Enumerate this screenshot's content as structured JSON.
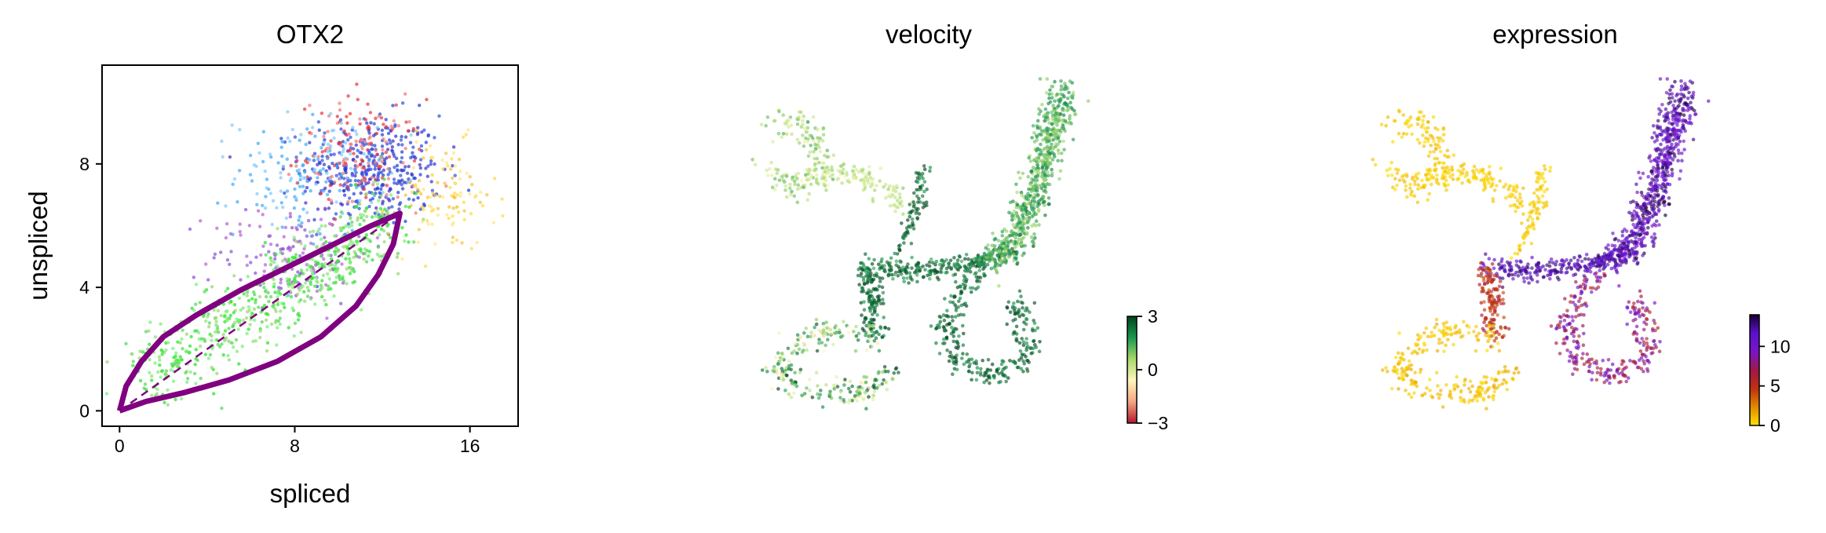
{
  "chart_data": [
    {
      "type": "scatter",
      "title": "OTX2",
      "xlabel": "spliced",
      "ylabel": "unspliced",
      "xlim": [
        -0.8,
        18.2
      ],
      "ylim": [
        -0.5,
        11.2
      ],
      "xticks": [
        0,
        8,
        16
      ],
      "yticks": [
        0,
        4,
        8
      ],
      "grid": false,
      "frame": "box",
      "cluster_palette": [
        "#1f3bd6",
        "#3a2fc4",
        "#e8323a",
        "#f07878",
        "#3fa9f5",
        "#7fc9ff",
        "#8a4fd8",
        "#b05fd8",
        "#2ee82e",
        "#7cf07c",
        "#9ed87a",
        "#ffd84a",
        "#ffe680"
      ],
      "clusters": [
        {
          "center": [
            11.5,
            7.8
          ],
          "spread": [
            1.6,
            0.9
          ],
          "count": 380,
          "colors": [
            "#1f3bd6",
            "#3a2fc4",
            "#2b4de0"
          ]
        },
        {
          "center": [
            11.0,
            8.3
          ],
          "spread": [
            1.4,
            0.9
          ],
          "count": 160,
          "colors": [
            "#e8323a",
            "#f07878"
          ]
        },
        {
          "center": [
            8.5,
            7.6
          ],
          "spread": [
            1.6,
            1.0
          ],
          "count": 160,
          "colors": [
            "#3fa9f5",
            "#7fc9ff"
          ]
        },
        {
          "center": [
            14.8,
            6.9
          ],
          "spread": [
            1.2,
            0.9
          ],
          "count": 110,
          "colors": [
            "#ffd84a",
            "#ffe680",
            "#f5c13a"
          ]
        },
        {
          "center": [
            7.8,
            5.1
          ],
          "spread": [
            1.8,
            0.8
          ],
          "count": 140,
          "colors": [
            "#8a4fd8",
            "#b05fd8"
          ]
        }
      ],
      "diagonal_band": {
        "from": [
          0.5,
          0.8
        ],
        "to": [
          12.5,
          6.2
        ],
        "width": 0.8,
        "count": 650,
        "colors": [
          "#2ee82e",
          "#7cf07c",
          "#9ed87a",
          "#5fd85f"
        ]
      },
      "model_curve": {
        "color": "#800080",
        "upper": [
          [
            0,
            0
          ],
          [
            0.3,
            0.8
          ],
          [
            1,
            1.6
          ],
          [
            2,
            2.4
          ],
          [
            3.5,
            3.1
          ],
          [
            5.5,
            3.9
          ],
          [
            7.5,
            4.6
          ],
          [
            9.5,
            5.3
          ],
          [
            11.5,
            6.0
          ],
          [
            12.8,
            6.4
          ]
        ],
        "lower": [
          [
            12.8,
            6.4
          ],
          [
            12.5,
            5.4
          ],
          [
            11.8,
            4.4
          ],
          [
            10.8,
            3.4
          ],
          [
            9.2,
            2.4
          ],
          [
            7.2,
            1.6
          ],
          [
            5.0,
            1.0
          ],
          [
            3.0,
            0.6
          ],
          [
            1.2,
            0.3
          ],
          [
            0,
            0
          ]
        ],
        "steady_state_line": {
          "from": [
            0,
            0
          ],
          "to": [
            12.8,
            6.4
          ],
          "dash": true
        }
      }
    },
    {
      "type": "scatter",
      "title": "velocity",
      "embedding": "umap",
      "colormap": "red-yellow-green",
      "colorbar": {
        "ticks": [
          3,
          0,
          -3
        ],
        "tick_labels": [
          "3",
          "0",
          "−3"
        ],
        "min": -3,
        "max": 3
      },
      "colorbar_stops": [
        "#b2182b",
        "#f4a582",
        "#fff7bc",
        "#a6d96a",
        "#1a9850",
        "#00441b"
      ]
    },
    {
      "type": "scatter",
      "title": "expression",
      "embedding": "umap",
      "colormap": "yellow-red-purple-black",
      "colorbar": {
        "ticks": [
          10,
          5,
          0
        ],
        "tick_labels": [
          "10",
          "5",
          "0"
        ],
        "min": 0,
        "max": 14
      },
      "colorbar_stops": [
        "#ffe000",
        "#e08a00",
        "#c03010",
        "#a01848",
        "#7a14c8",
        "#5a10d0",
        "#1a0030"
      ]
    }
  ],
  "umap_segments": [
    {
      "name": "top-left-blob",
      "pts": [
        [
          0.07,
          0.14
        ],
        [
          0.14,
          0.12
        ],
        [
          0.2,
          0.18
        ],
        [
          0.22,
          0.27
        ],
        [
          0.14,
          0.33
        ],
        [
          0.06,
          0.28
        ]
      ],
      "count": 160,
      "w": 0.05,
      "v": [
        -0.3,
        1.4
      ],
      "e": [
        0.0,
        1.2
      ]
    },
    {
      "name": "upper-branch",
      "pts": [
        [
          0.18,
          0.28
        ],
        [
          0.3,
          0.29
        ],
        [
          0.38,
          0.32
        ],
        [
          0.43,
          0.38
        ]
      ],
      "count": 120,
      "w": 0.035,
      "v": [
        -0.5,
        0.9
      ],
      "e": [
        0.0,
        1.0
      ]
    },
    {
      "name": "branch-tip",
      "pts": [
        [
          0.48,
          0.26
        ],
        [
          0.47,
          0.36
        ],
        [
          0.44,
          0.45
        ],
        [
          0.41,
          0.52
        ]
      ],
      "count": 80,
      "w": 0.025,
      "v": [
        1.8,
        3.2
      ],
      "e": [
        0.0,
        1.0
      ]
    },
    {
      "name": "horizontal-bridge",
      "pts": [
        [
          0.33,
          0.56
        ],
        [
          0.44,
          0.57
        ],
        [
          0.55,
          0.56
        ],
        [
          0.66,
          0.54
        ],
        [
          0.74,
          0.5
        ]
      ],
      "count": 260,
      "w": 0.035,
      "v": [
        1.5,
        3.2
      ],
      "e": [
        10.5,
        13.5
      ]
    },
    {
      "name": "left-stem",
      "pts": [
        [
          0.33,
          0.56
        ],
        [
          0.34,
          0.63
        ],
        [
          0.36,
          0.7
        ],
        [
          0.35,
          0.77
        ]
      ],
      "count": 140,
      "w": 0.04,
      "v": [
        1.8,
        3.2
      ],
      "e": [
        3.5,
        6.5
      ]
    },
    {
      "name": "bottom-left-loop",
      "pts": [
        [
          0.35,
          0.77
        ],
        [
          0.26,
          0.74
        ],
        [
          0.15,
          0.78
        ],
        [
          0.1,
          0.86
        ],
        [
          0.17,
          0.93
        ],
        [
          0.32,
          0.93
        ],
        [
          0.4,
          0.86
        ]
      ],
      "count": 260,
      "w": 0.045,
      "v": [
        -1.0,
        3.0
      ],
      "e": [
        0.0,
        1.6
      ]
    },
    {
      "name": "lower-right-loop",
      "pts": [
        [
          0.62,
          0.58
        ],
        [
          0.56,
          0.66
        ],
        [
          0.54,
          0.75
        ],
        [
          0.58,
          0.84
        ],
        [
          0.67,
          0.88
        ],
        [
          0.75,
          0.84
        ],
        [
          0.76,
          0.74
        ],
        [
          0.72,
          0.65
        ]
      ],
      "count": 280,
      "w": 0.04,
      "v": [
        1.8,
        3.2
      ],
      "e": [
        5.0,
        11.0
      ]
    },
    {
      "name": "tall-right-arm",
      "pts": [
        [
          0.66,
          0.55
        ],
        [
          0.72,
          0.48
        ],
        [
          0.77,
          0.38
        ],
        [
          0.8,
          0.25
        ],
        [
          0.83,
          0.12
        ],
        [
          0.85,
          0.03
        ]
      ],
      "count": 620,
      "w": 0.05,
      "v": [
        0.5,
        2.2
      ],
      "e": [
        9.0,
        14.0
      ]
    }
  ]
}
